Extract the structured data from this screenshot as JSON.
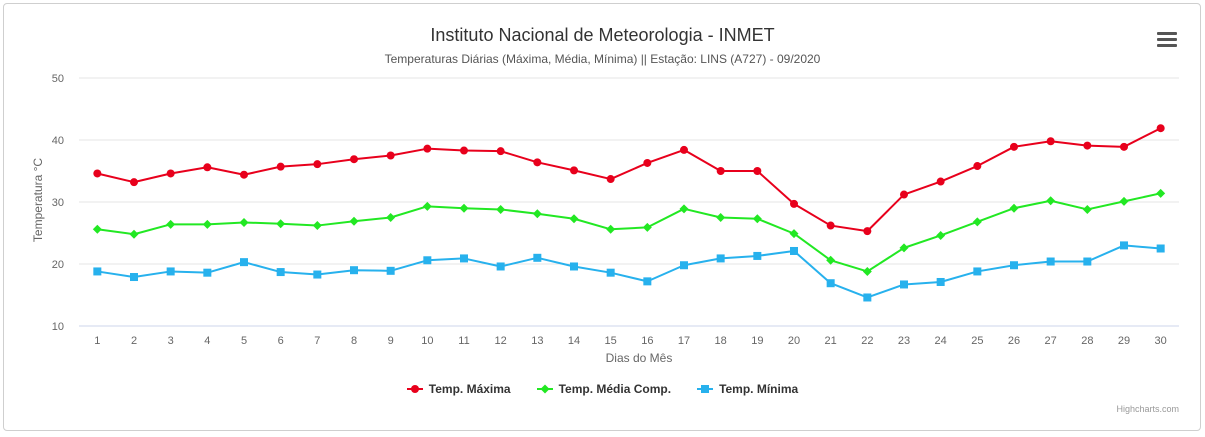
{
  "chart_data": {
    "type": "line",
    "title": "Instituto Nacional de Meteorologia - INMET",
    "subtitle": "Temperaturas Diárias (Máxima, Média, Mínima) || Estação: LINS (A727) - 09/2020",
    "xlabel": "Dias do Mês",
    "ylabel": "Temperatura °C",
    "ylim": [
      10,
      50
    ],
    "yticks": [
      10,
      20,
      30,
      40,
      50
    ],
    "grid": true,
    "legend_position": "bottom-center",
    "categories": [
      "1",
      "2",
      "3",
      "4",
      "5",
      "6",
      "7",
      "8",
      "9",
      "10",
      "11",
      "12",
      "13",
      "14",
      "15",
      "16",
      "17",
      "18",
      "19",
      "20",
      "21",
      "22",
      "23",
      "24",
      "25",
      "26",
      "27",
      "28",
      "29",
      "30"
    ],
    "series": [
      {
        "name": "Temp. Máxima",
        "color": "#e8001c",
        "marker": "circle",
        "values": [
          34.6,
          33.2,
          34.6,
          35.6,
          34.4,
          35.7,
          36.1,
          36.9,
          37.5,
          38.6,
          38.3,
          38.2,
          36.4,
          35.1,
          33.7,
          36.3,
          38.4,
          35.0,
          35.0,
          29.7,
          26.2,
          25.3,
          31.2,
          33.3,
          35.8,
          38.9,
          39.8,
          39.1,
          38.9,
          41.9
        ]
      },
      {
        "name": "Temp. Média Comp.",
        "color": "#22e823",
        "marker": "diamond",
        "values": [
          25.6,
          24.8,
          26.4,
          26.4,
          26.7,
          26.5,
          26.2,
          26.9,
          27.5,
          29.3,
          29.0,
          28.8,
          28.1,
          27.3,
          25.6,
          25.9,
          28.9,
          27.5,
          27.3,
          24.9,
          20.6,
          18.8,
          22.6,
          24.6,
          26.8,
          29.0,
          30.2,
          28.8,
          30.1,
          31.4
        ]
      },
      {
        "name": "Temp. Mínima",
        "color": "#27b1ed",
        "marker": "square",
        "values": [
          18.8,
          17.9,
          18.8,
          18.6,
          20.3,
          18.7,
          18.3,
          19.0,
          18.9,
          20.6,
          20.9,
          19.6,
          21.0,
          19.6,
          18.6,
          17.2,
          19.8,
          20.9,
          21.3,
          22.1,
          16.9,
          14.6,
          16.7,
          17.1,
          18.8,
          19.8,
          20.4,
          20.4,
          23.0,
          22.5
        ]
      }
    ]
  },
  "ui": {
    "menu_icon": "hamburger-menu-icon",
    "credits": "Highcharts.com"
  }
}
